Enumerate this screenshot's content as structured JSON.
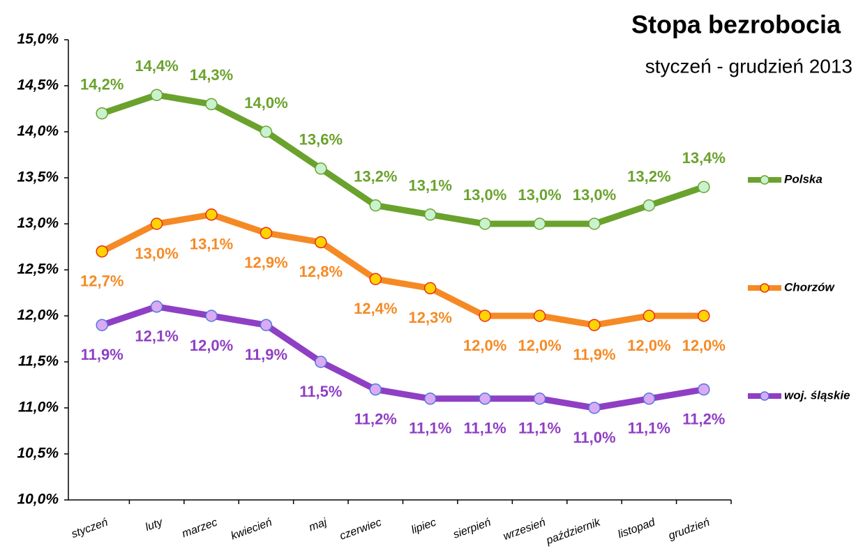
{
  "chart_data": {
    "type": "line",
    "title": "Stopa bezrobocia",
    "subtitle": "styczeń - grudzień 2013",
    "categories": [
      "styczeń",
      "luty",
      "marzec",
      "kwiecień",
      "maj",
      "czerwiec",
      "lipiec",
      "sierpień",
      "wrzesień",
      "październik",
      "listopad",
      "grudzień"
    ],
    "series": [
      {
        "name": "Polska",
        "color": "#6aa22d",
        "marker_fill": "#c9f2cf",
        "marker_edge": "#6aa22d",
        "values": [
          14.2,
          14.4,
          14.3,
          14.0,
          13.6,
          13.2,
          13.1,
          13.0,
          13.0,
          13.0,
          13.2,
          13.4
        ],
        "value_labels": [
          "14,2%",
          "14,4%",
          "14,3%",
          "14,0%",
          "13,6%",
          "13,2%",
          "13,1%",
          "13,0%",
          "13,0%",
          "13,0%",
          "13,2%",
          "13,4%"
        ]
      },
      {
        "name": "Chorzów",
        "color": "#f58a25",
        "marker_fill": "#ffd400",
        "marker_edge": "#e8281e",
        "values": [
          12.7,
          13.0,
          13.1,
          12.9,
          12.8,
          12.4,
          12.3,
          12.0,
          12.0,
          11.9,
          12.0,
          12.0
        ],
        "value_labels": [
          "12,7%",
          "13,0%",
          "13,1%",
          "12,9%",
          "12,8%",
          "12,4%",
          "12,3%",
          "12,0%",
          "12,0%",
          "11,9%",
          "12,0%",
          "12,0%"
        ]
      },
      {
        "name": "woj. śląskie",
        "color": "#8f3fc4",
        "marker_fill": "#dcaaf2",
        "marker_edge": "#4a78e0",
        "values": [
          11.9,
          12.1,
          12.0,
          11.9,
          11.5,
          11.2,
          11.1,
          11.1,
          11.1,
          11.0,
          11.1,
          11.2
        ],
        "value_labels": [
          "11,9%",
          "12,1%",
          "12,0%",
          "11,9%",
          "11,5%",
          "11,2%",
          "11,1%",
          "11,1%",
          "11,1%",
          "11,0%",
          "11,1%",
          "11,2%"
        ]
      }
    ],
    "ylim": [
      10,
      15
    ],
    "yticks": [
      {
        "value": 10,
        "label": "10,0%"
      },
      {
        "value": 10.5,
        "label": "10,5%"
      },
      {
        "value": 11,
        "label": "11,0%"
      },
      {
        "value": 11.5,
        "label": "11,5%"
      },
      {
        "value": 12,
        "label": "12,0%"
      },
      {
        "value": 12.5,
        "label": "12,5%"
      },
      {
        "value": 13,
        "label": "13,0%"
      },
      {
        "value": 13.5,
        "label": "13,5%"
      },
      {
        "value": 14,
        "label": "14,0%"
      },
      {
        "value": 14.5,
        "label": "14,5%"
      },
      {
        "value": 15,
        "label": "15,0%"
      }
    ],
    "grid": false,
    "legend": "right"
  }
}
